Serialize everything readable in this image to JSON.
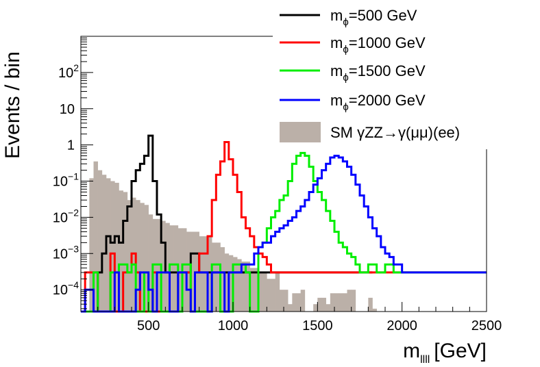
{
  "chart_data": {
    "type": "step",
    "xlabel": "m",
    "xlabel_sub": "llll",
    "xlabel_unit": "[GeV]",
    "ylabel": "Events / bin",
    "yscale": "log",
    "xlim": [
      100,
      2500
    ],
    "ylim": [
      2.5e-05,
      1000
    ],
    "bin_width": 25,
    "xticks": [
      500,
      1000,
      1500,
      2000,
      2500
    ],
    "yticks": [
      {
        "exp": -4,
        "label": "10",
        "sup": "−4"
      },
      {
        "exp": -3,
        "label": "10",
        "sup": "−3"
      },
      {
        "exp": -2,
        "label": "10",
        "sup": "−2"
      },
      {
        "exp": -1,
        "label": "10",
        "sup": "−1"
      },
      {
        "exp": 0,
        "label": "1",
        "sup": ""
      },
      {
        "exp": 1,
        "label": "10",
        "sup": ""
      },
      {
        "exp": 2,
        "label": "10",
        "sup": "2"
      }
    ],
    "legend_position": "top-right",
    "background": {
      "name": "SM γZZ→γ(μμ)(ee)",
      "color": "#bbb0a8",
      "start": 150,
      "values": [
        0.12,
        0.35,
        0.2,
        0.15,
        0.12,
        0.1,
        0.09,
        0.055,
        0.05,
        0.03,
        0.035,
        0.03,
        0.025,
        0.022,
        0.012,
        0.009,
        0.009,
        0.008,
        0.007,
        0.006,
        0.006,
        0.005,
        0.005,
        0.004,
        0.004,
        0.004,
        0.003,
        0.003,
        0.003,
        0.002,
        0.002,
        0.0015,
        0.001,
        0.0009,
        0.0008,
        0.0007,
        0.0006,
        0.0006,
        0.0004,
        0.0004,
        0.0003,
        0.0003,
        0.0002,
        0.0002,
        0.0003,
        0.0001,
        0.0001,
        4e-05,
        8e-05,
        8e-05,
        0.0001,
        0,
        0,
        4e-05,
        6e-05,
        6e-05,
        4e-05,
        8e-05,
        8e-05,
        8e-05,
        8e-05,
        0.0001,
        0.0001,
        0,
        0,
        0,
        6e-05,
        3e-05
      ]
    },
    "series": [
      {
        "name": "m",
        "sub": "ϕ",
        "label_rest": "=500 GeV",
        "color": "#000000",
        "start": 125,
        "values": [
          0,
          0,
          0,
          0.0003,
          0.001,
          0.003,
          0.002,
          0.003,
          0.002,
          0.008,
          0.02,
          0.1,
          0.2,
          0.3,
          0.5,
          1.8,
          0.1,
          0.012,
          0.002,
          0.0003,
          0.0003,
          0.0003,
          0.0003,
          0.0003,
          0.0003,
          0.001,
          0.001,
          0.0003,
          0.0003,
          0.0003,
          0.0003,
          0.0003,
          0.0003,
          0.0003,
          0.0003,
          0.0003,
          0.0003,
          0.0003,
          0.0003,
          0.0003,
          0.0003,
          0.0003,
          0.0003,
          0.0003,
          0.0003,
          0.0003,
          0.0003,
          0.0003,
          0.0003,
          0.0003,
          0.0003,
          0.0003,
          0.0003,
          0.0003,
          0.0003,
          0.0003,
          0.0003,
          0.0003,
          0.0003,
          0.0003,
          0.0003,
          0.0003,
          0.0003,
          0.0003,
          0.0003,
          0.0003,
          0.0003,
          0.0003
        ]
      },
      {
        "name": "m",
        "sub": "ϕ",
        "label_rest": "=1000 GeV",
        "color": "#ff0000",
        "start": 100,
        "values": [
          0,
          0.0003,
          0.0003,
          0.0003,
          0,
          0,
          0,
          0.001,
          0,
          0,
          0.0003,
          0.0003,
          0.001,
          0.0003,
          0,
          0,
          0,
          0.0003,
          0,
          0,
          0,
          0,
          0,
          0.0003,
          0.0003,
          0.0003,
          0,
          0.0003,
          0.001,
          0.001,
          0.003,
          0.03,
          0.15,
          0.35,
          1.2,
          0.4,
          0.15,
          0.05,
          0.01,
          0.005,
          0.003,
          0.0015,
          0.001,
          0.0008,
          0.0005,
          0.0003,
          0.0003,
          0.0003,
          0.0003,
          0.0003,
          0.0003,
          0.0003,
          0.0003,
          0.0003,
          0.0003,
          0.0003,
          0.0003,
          0.0003,
          0.0003,
          0.0003,
          0.0003,
          0.0003,
          0.0003,
          0.0003,
          0.0003,
          0.0003,
          0.0003,
          0.0003,
          0.0003,
          0.0003,
          0.0003,
          0.0003,
          0.0003,
          0.0003,
          0.0003,
          0.0003,
          0.0003,
          0.0003,
          0.0003,
          0.0003,
          0.0003,
          0.0003,
          0.0003,
          0.0003,
          0.0003,
          0.0003,
          0.0003,
          0.0003,
          0.0003,
          0.0003,
          0.0003,
          0.0003,
          0.0003,
          0.0003,
          0.0003,
          0.0003
        ]
      },
      {
        "name": "m",
        "sub": "ϕ",
        "label_rest": "=1500 GeV",
        "color": "#00ee00",
        "start": 100,
        "values": [
          0,
          0,
          0,
          0.0003,
          0,
          0,
          0,
          0.0003,
          0.0003,
          0.0005,
          0.0005,
          0.0003,
          0.0005,
          0,
          0,
          0.0003,
          0,
          0.0005,
          0.0005,
          0,
          0,
          0.0005,
          0.0005,
          0,
          0.0005,
          0.0005,
          0,
          0,
          0,
          0,
          0,
          0.0005,
          0.0005,
          0,
          0,
          0,
          0.0005,
          0.0005,
          0.0005,
          0.0003,
          0,
          0,
          0.0015,
          0.002,
          0.005,
          0.01,
          0.015,
          0.03,
          0.04,
          0.1,
          0.3,
          0.5,
          0.6,
          0.5,
          0.25,
          0.1,
          0.05,
          0.03,
          0.015,
          0.008,
          0.004,
          0.002,
          0.0015,
          0.001,
          0.0008,
          0.0005,
          0.0003,
          0.0003,
          0.0005,
          0.0005,
          0.0003,
          0.0003,
          0.0005,
          0.0005,
          0.0003,
          0.0003,
          0.0003,
          0.0003,
          0.0003,
          0.0003,
          0.0003,
          0.0003,
          0.0003,
          0.0003,
          0.0003,
          0.0003,
          0.0003,
          0.0003,
          0.0003,
          0.0003,
          0.0003,
          0.0003,
          0.0003,
          0.0003,
          0.0003,
          0.0003
        ]
      },
      {
        "name": "m",
        "sub": "ϕ",
        "label_rest": "=2000 GeV",
        "color": "#0000ff",
        "start": 100,
        "values": [
          0,
          0.0001,
          0.0001,
          0,
          0,
          0,
          0,
          0,
          0.0003,
          0,
          0,
          0,
          0,
          0.0001,
          0.0003,
          0.0003,
          0.0001,
          0,
          0.0003,
          0.0003,
          0.0003,
          0,
          0,
          0.0003,
          0.0003,
          0.0001,
          0,
          0.0003,
          0.0003,
          0.0003,
          0,
          0.0003,
          0.0003,
          0.0003,
          0,
          0.0003,
          0.0003,
          0.0003,
          0.0005,
          0.0005,
          0.0005,
          0.001,
          0.0015,
          0.002,
          0.002,
          0.003,
          0.004,
          0.005,
          0.006,
          0.008,
          0.01,
          0.015,
          0.02,
          0.03,
          0.05,
          0.08,
          0.12,
          0.2,
          0.3,
          0.45,
          0.5,
          0.45,
          0.35,
          0.25,
          0.15,
          0.08,
          0.04,
          0.02,
          0.01,
          0.005,
          0.003,
          0.0015,
          0.001,
          0.0008,
          0.0005,
          0.0005,
          0.0003,
          0.0003,
          0.0003,
          0.0003,
          0.0003,
          0.0003,
          0.0003,
          0.0003,
          0.0003,
          0.0003,
          0.0003,
          0.0003,
          0.0003,
          0.0003,
          0.0003,
          0.0003,
          0.0003,
          0.0003,
          0.0003,
          0.0003
        ]
      }
    ]
  }
}
